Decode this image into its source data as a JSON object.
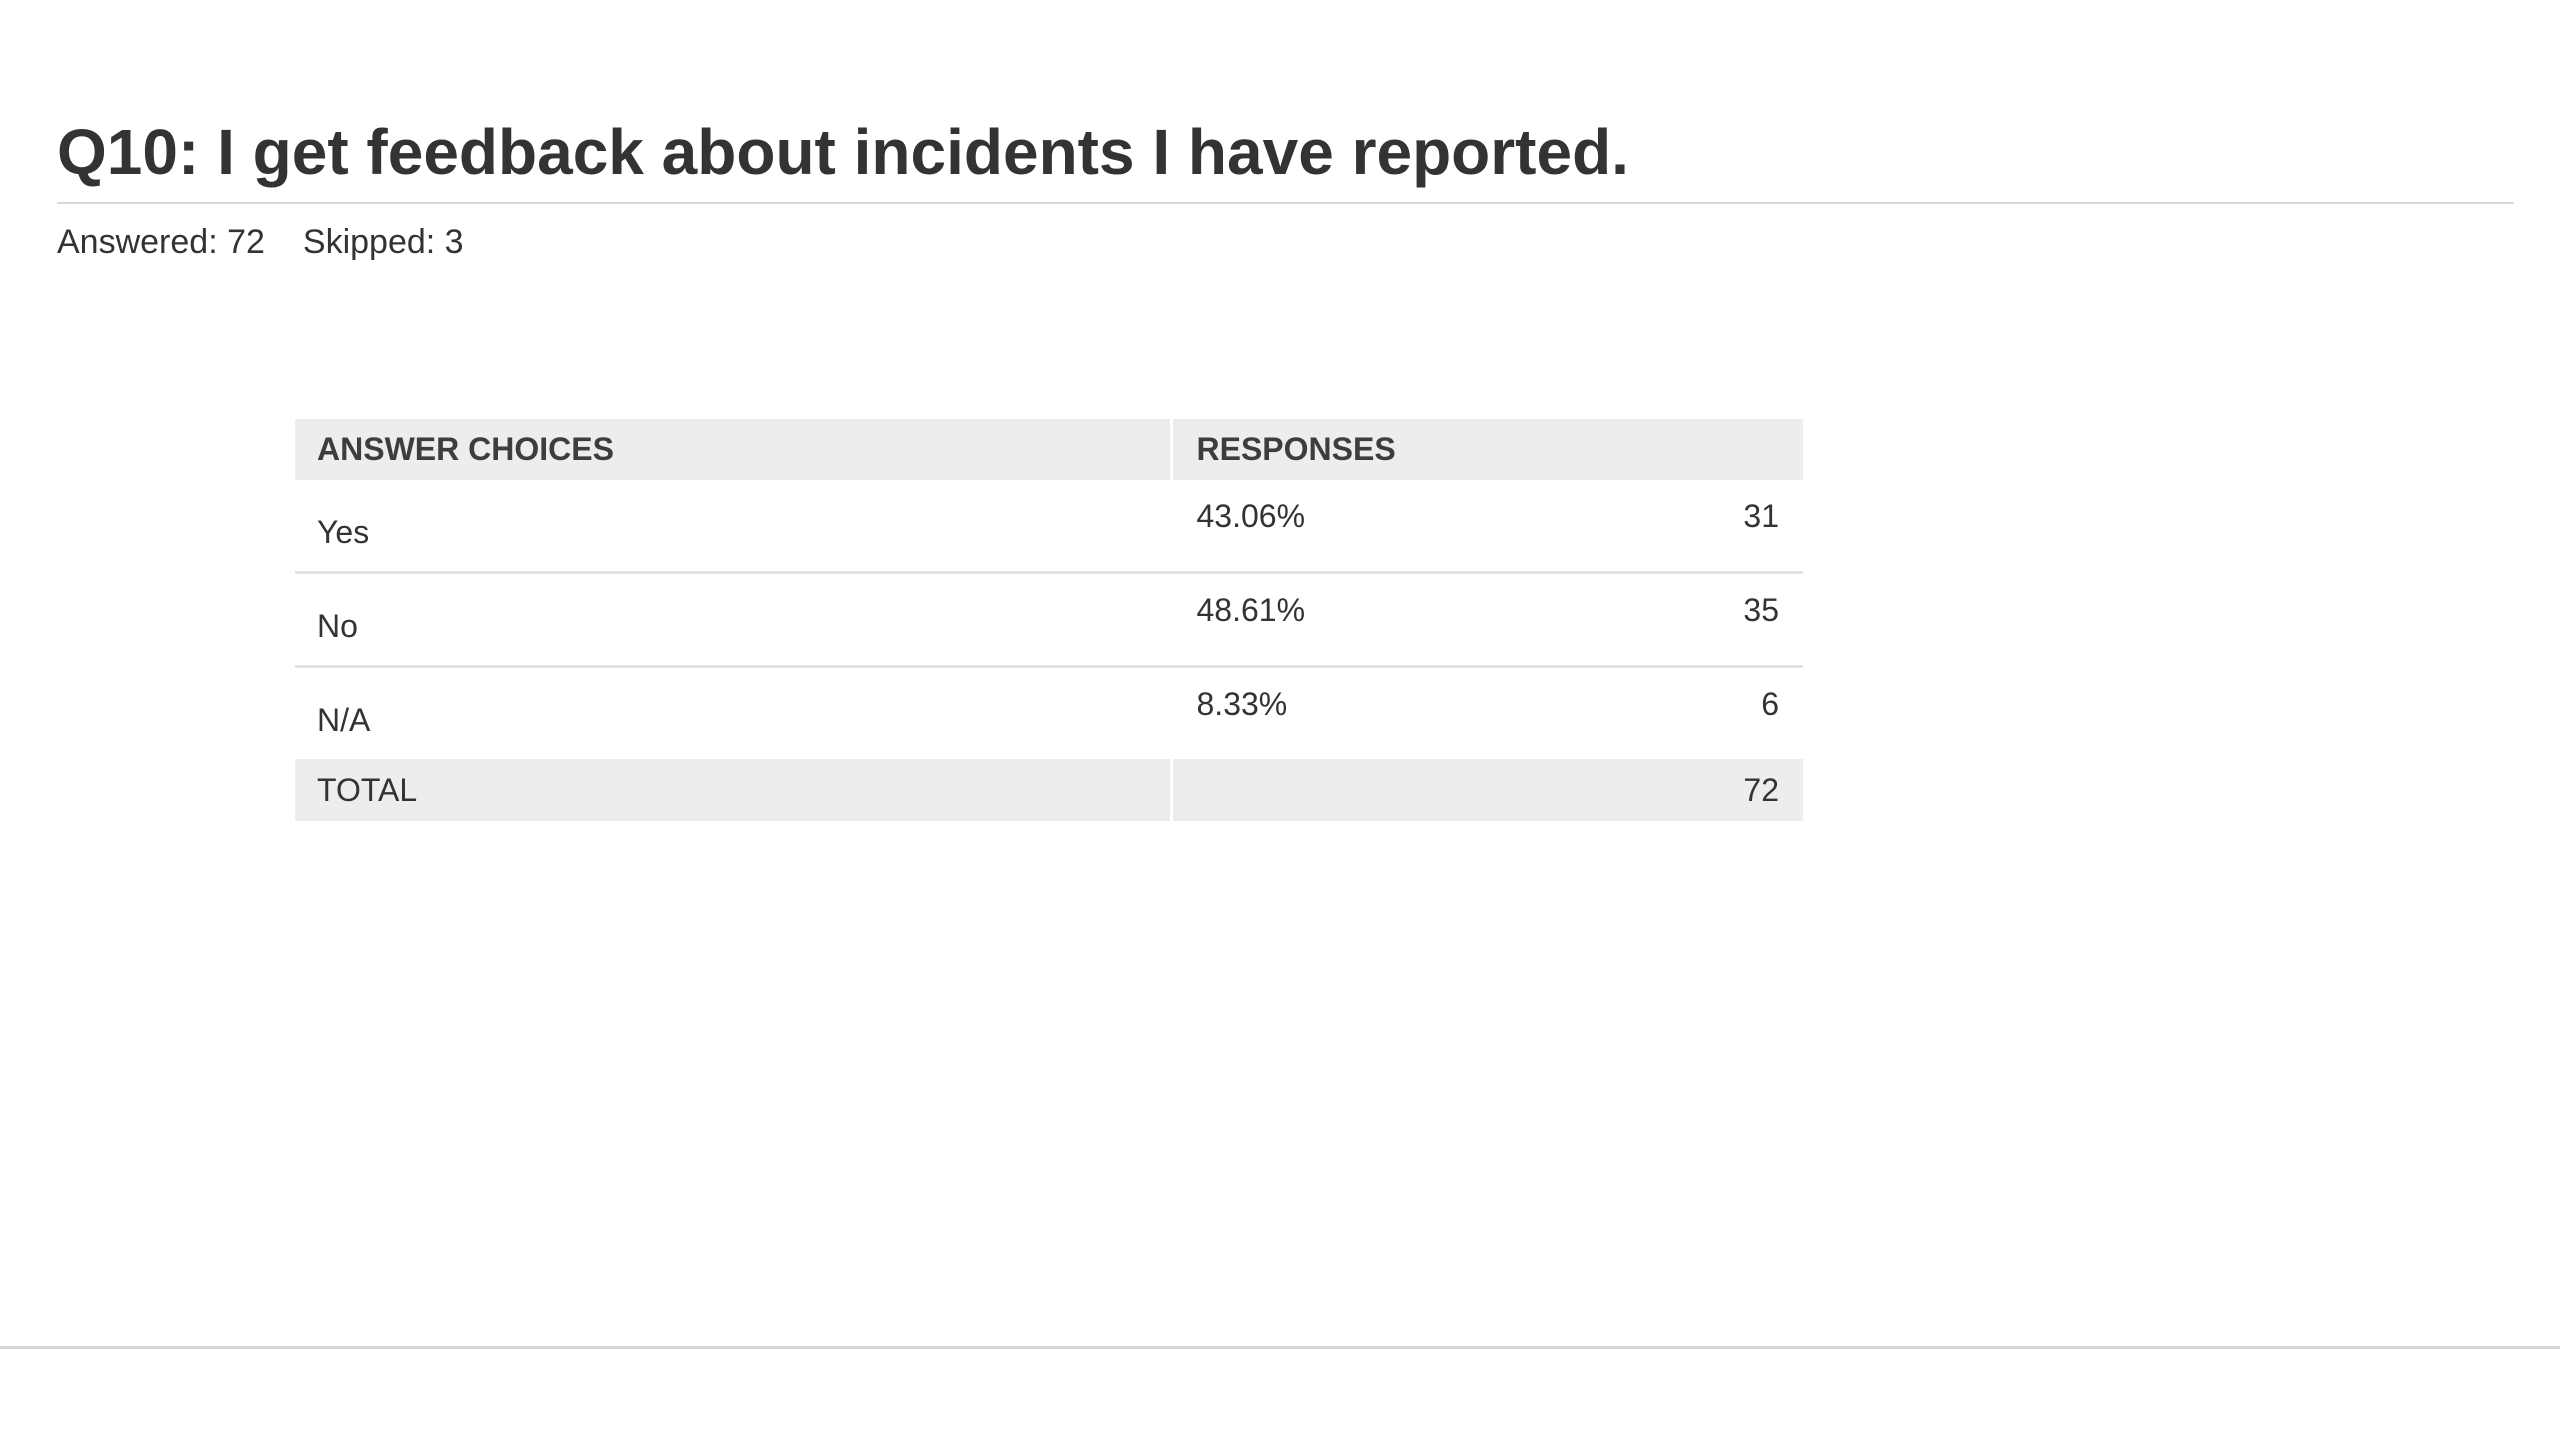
{
  "question": {
    "title": "Q10: I get feedback about incidents I have reported."
  },
  "stats": {
    "answered": "Answered: 72",
    "skipped": "Skipped: 3"
  },
  "table": {
    "headers": {
      "choices": "ANSWER CHOICES",
      "responses": "RESPONSES"
    },
    "rows": [
      {
        "choice": "Yes",
        "percent": "43.06%",
        "count": "31"
      },
      {
        "choice": "No",
        "percent": "48.61%",
        "count": "35"
      },
      {
        "choice": "N/A",
        "percent": "8.33%",
        "count": "6"
      }
    ],
    "total": {
      "label": "TOTAL",
      "count": "72"
    }
  }
}
